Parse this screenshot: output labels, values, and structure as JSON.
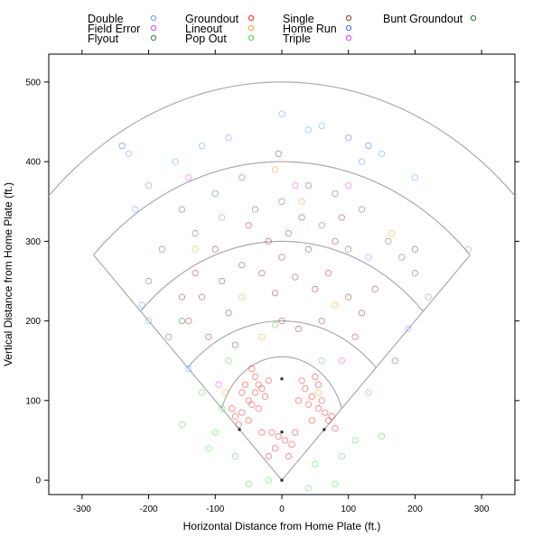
{
  "chart_data": {
    "type": "scatter",
    "title": "",
    "xlabel": "Horizontal Distance from Home Plate (ft.)",
    "ylabel": "Vertical Distance from Home Plate (ft.)",
    "xlim": [
      -350,
      350
    ],
    "ylim": [
      -18,
      535
    ],
    "xticks": [
      -300,
      -200,
      -100,
      0,
      100,
      200,
      300
    ],
    "yticks": [
      0,
      100,
      200,
      300,
      400,
      500
    ],
    "grid": false,
    "legend_position": "top",
    "legend": [
      {
        "label": "Double",
        "color": "#5b9bff"
      },
      {
        "label": "Field Error",
        "color": "#ff33ff"
      },
      {
        "label": "Flyout",
        "color": "#3f7f3f"
      },
      {
        "label": "Groundout",
        "color": "#ff2020"
      },
      {
        "label": "Lineout",
        "color": "#ff9f20"
      },
      {
        "label": "Pop Out",
        "color": "#40e040"
      },
      {
        "label": "Single",
        "color": "#993333"
      },
      {
        "label": "Home Run",
        "color": "#3366ff"
      },
      {
        "label": "Triple",
        "color": "#ff33ff"
      },
      {
        "label": "Bunt Groundout",
        "color": "#336633"
      }
    ],
    "field_arcs_ft": [
      200,
      300,
      400,
      500
    ],
    "infield_arc": {
      "center": [
        0,
        60
      ],
      "radius": 95
    },
    "bases": [
      [
        0,
        0
      ],
      [
        63.6,
        63.6
      ],
      [
        0,
        127.3
      ],
      [
        -63.6,
        63.6
      ],
      [
        0,
        60.5
      ]
    ],
    "points": [
      [
        -40,
        110,
        3
      ],
      [
        -35,
        120,
        3
      ],
      [
        -50,
        100,
        3
      ],
      [
        -45,
        95,
        3
      ],
      [
        -30,
        115,
        3
      ],
      [
        -55,
        120,
        3
      ],
      [
        -60,
        85,
        3
      ],
      [
        -70,
        80,
        3
      ],
      [
        -25,
        105,
        3
      ],
      [
        -40,
        130,
        3
      ],
      [
        -20,
        125,
        3
      ],
      [
        -65,
        70,
        3
      ],
      [
        -50,
        75,
        3
      ],
      [
        -75,
        90,
        3
      ],
      [
        -35,
        90,
        3
      ],
      [
        -45,
        140,
        3
      ],
      [
        -15,
        60,
        3
      ],
      [
        -10,
        40,
        3
      ],
      [
        -5,
        55,
        3
      ],
      [
        5,
        50,
        3
      ],
      [
        10,
        30,
        3
      ],
      [
        -20,
        30,
        3
      ],
      [
        35,
        115,
        3
      ],
      [
        45,
        105,
        3
      ],
      [
        55,
        120,
        3
      ],
      [
        40,
        95,
        3
      ],
      [
        60,
        100,
        3
      ],
      [
        65,
        85,
        3
      ],
      [
        70,
        75,
        3
      ],
      [
        50,
        130,
        3
      ],
      [
        30,
        125,
        3
      ],
      [
        75,
        80,
        3
      ],
      [
        55,
        90,
        3
      ],
      [
        25,
        100,
        3
      ],
      [
        80,
        65,
        3
      ],
      [
        45,
        75,
        3
      ],
      [
        20,
        60,
        3
      ],
      [
        15,
        45,
        3
      ],
      [
        -30,
        60,
        3
      ],
      [
        -60,
        110,
        3
      ],
      [
        -120,
        230,
        6
      ],
      [
        -90,
        250,
        6
      ],
      [
        -60,
        270,
        6
      ],
      [
        -30,
        260,
        6
      ],
      [
        0,
        280,
        6
      ],
      [
        20,
        255,
        6
      ],
      [
        40,
        290,
        6
      ],
      [
        70,
        260,
        6
      ],
      [
        100,
        230,
        6
      ],
      [
        120,
        210,
        6
      ],
      [
        -140,
        200,
        6
      ],
      [
        -110,
        180,
        6
      ],
      [
        -80,
        210,
        6
      ],
      [
        -20,
        300,
        6
      ],
      [
        10,
        310,
        6
      ],
      [
        50,
        240,
        6
      ],
      [
        80,
        300,
        6
      ],
      [
        -50,
        320,
        6
      ],
      [
        30,
        330,
        6
      ],
      [
        -100,
        290,
        6
      ],
      [
        110,
        180,
        6
      ],
      [
        -130,
        260,
        6
      ],
      [
        60,
        200,
        6
      ],
      [
        -10,
        235,
        6
      ],
      [
        90,
        330,
        6
      ],
      [
        -70,
        170,
        6
      ],
      [
        140,
        240,
        6
      ],
      [
        -150,
        230,
        6
      ],
      [
        0,
        200,
        6
      ],
      [
        25,
        190,
        6
      ],
      [
        -180,
        290,
        2
      ],
      [
        -150,
        340,
        2
      ],
      [
        -100,
        360,
        2
      ],
      [
        -60,
        380,
        2
      ],
      [
        0,
        350,
        2
      ],
      [
        40,
        370,
        2
      ],
      [
        80,
        360,
        2
      ],
      [
        120,
        340,
        2
      ],
      [
        160,
        300,
        2
      ],
      [
        180,
        280,
        2
      ],
      [
        -200,
        250,
        2
      ],
      [
        -130,
        310,
        2
      ],
      [
        100,
        290,
        2
      ],
      [
        -40,
        340,
        2
      ],
      [
        60,
        320,
        2
      ],
      [
        200,
        260,
        2
      ],
      [
        -170,
        180,
        2
      ],
      [
        170,
        150,
        2
      ],
      [
        -230,
        410,
        0
      ],
      [
        -200,
        370,
        0
      ],
      [
        -160,
        400,
        0
      ],
      [
        -120,
        420,
        0
      ],
      [
        -80,
        430,
        0
      ],
      [
        120,
        400,
        0
      ],
      [
        150,
        410,
        0
      ],
      [
        200,
        380,
        0
      ],
      [
        40,
        440,
        0
      ],
      [
        60,
        445,
        0
      ],
      [
        -210,
        220,
        0
      ],
      [
        -200,
        200,
        0
      ],
      [
        -220,
        340,
        0
      ],
      [
        220,
        230,
        0
      ],
      [
        280,
        290,
        0
      ],
      [
        0,
        460,
        0
      ],
      [
        -140,
        140,
        0
      ],
      [
        190,
        190,
        0
      ],
      [
        -90,
        330,
        0
      ],
      [
        130,
        280,
        0
      ],
      [
        -100,
        60,
        5
      ],
      [
        -110,
        40,
        5
      ],
      [
        -90,
        90,
        5
      ],
      [
        -120,
        110,
        5
      ],
      [
        -20,
        0,
        5
      ],
      [
        40,
        -10,
        5
      ],
      [
        50,
        20,
        5
      ],
      [
        -70,
        30,
        5
      ],
      [
        90,
        30,
        5
      ],
      [
        110,
        50,
        5
      ],
      [
        150,
        55,
        5
      ],
      [
        -150,
        70,
        5
      ],
      [
        -80,
        150,
        5
      ],
      [
        60,
        150,
        5
      ],
      [
        130,
        110,
        5
      ],
      [
        -10,
        195,
        5
      ],
      [
        80,
        -5,
        5
      ],
      [
        -50,
        -5,
        5
      ],
      [
        -10,
        390,
        4
      ],
      [
        30,
        350,
        4
      ],
      [
        -60,
        230,
        4
      ],
      [
        80,
        220,
        4
      ],
      [
        -30,
        180,
        4
      ],
      [
        -130,
        290,
        4
      ],
      [
        165,
        310,
        4
      ],
      [
        -85,
        110,
        4
      ],
      [
        55,
        110,
        4
      ],
      [
        -95,
        120,
        1
      ],
      [
        20,
        370,
        1
      ],
      [
        90,
        150,
        1
      ],
      [
        -240,
        420,
        7
      ],
      [
        130,
        420,
        7
      ],
      [
        100,
        430,
        7
      ],
      [
        100,
        370,
        8
      ],
      [
        -140,
        380,
        8
      ],
      [
        -150,
        200,
        9
      ],
      [
        200,
        290,
        9
      ],
      [
        -5,
        410,
        9
      ]
    ]
  }
}
